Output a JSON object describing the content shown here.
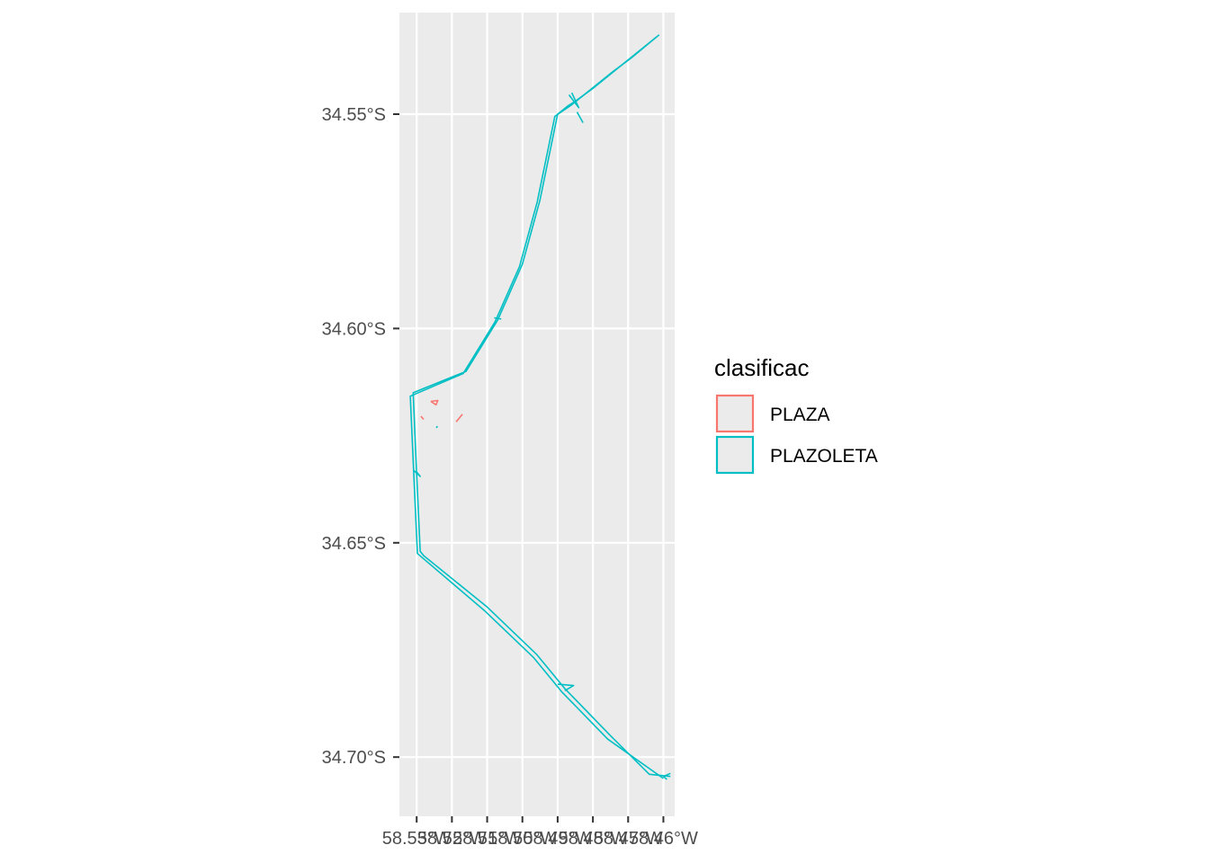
{
  "chart_data": {
    "type": "map",
    "y_ticks": [
      "34.55°S",
      "34.60°S",
      "34.65°S",
      "34.70°S"
    ],
    "y_values": [
      -34.55,
      -34.6,
      -34.65,
      -34.7
    ],
    "x_ticks": [
      "58.53°W",
      "58.52°W",
      "58.51°W",
      "58.50°W",
      "58.49°W",
      "58.48°W",
      "58.47°W",
      "58.46°W"
    ],
    "x_values": [
      -58.53,
      -58.52,
      -58.51,
      -58.5,
      -58.49,
      -58.48,
      -58.47,
      -58.46
    ],
    "xlim": [
      -58.5349,
      -58.4568
    ],
    "ylim": [
      -34.7138,
      -34.5263
    ],
    "grid": true,
    "panel_background": "#ebebeb",
    "legend": {
      "title": "clasificac",
      "position": "right",
      "entries": [
        {
          "label": "PLAZA",
          "color": "#f8766d"
        },
        {
          "label": "PLAZOLETA",
          "color": "#00bfc4"
        }
      ]
    },
    "series": [
      {
        "name": "PLAZOLETA",
        "color": "#00bfc4",
        "paths": [
          [
            [
              -58.4612,
              -34.5315
            ],
            [
              -58.468,
              -34.536
            ],
            [
              -58.474,
              -34.54
            ],
            [
              -58.48,
              -34.544
            ],
            [
              -58.485,
              -34.547
            ],
            [
              -58.487,
              -34.548
            ],
            [
              -58.49,
              -34.55
            ],
            [
              -58.495,
              -34.57
            ],
            [
              -58.5,
              -34.585
            ],
            [
              -58.507,
              -34.598
            ],
            [
              -58.516,
              -34.61
            ],
            [
              -58.531,
              -34.615
            ],
            [
              -58.53,
              -34.634
            ],
            [
              -58.529,
              -34.652
            ],
            [
              -58.528,
              -34.653
            ],
            [
              -58.51,
              -34.665
            ],
            [
              -58.496,
              -34.676
            ],
            [
              -58.488,
              -34.684
            ],
            [
              -58.475,
              -34.695
            ],
            [
              -58.464,
              -34.704
            ],
            [
              -58.458,
              -34.7045
            ]
          ],
          [
            [
              -58.462,
              -34.532
            ],
            [
              -58.469,
              -34.5368
            ],
            [
              -58.475,
              -34.5405
            ],
            [
              -58.486,
              -34.5478
            ],
            [
              -58.4908,
              -34.5505
            ],
            [
              -58.4958,
              -34.5705
            ],
            [
              -58.5008,
              -34.5855
            ],
            [
              -58.5078,
              -34.5985
            ],
            [
              -58.5168,
              -34.6105
            ],
            [
              -58.5318,
              -34.6158
            ],
            [
              -58.5308,
              -34.6345
            ],
            [
              -58.5298,
              -34.6525
            ],
            [
              -58.5108,
              -34.6658
            ],
            [
              -58.4968,
              -34.6768
            ],
            [
              -58.4888,
              -34.6848
            ],
            [
              -58.4758,
              -34.6958
            ],
            [
              -58.46,
              -34.705
            ]
          ],
          [
            [
              -58.4868,
              -34.5455
            ],
            [
              -58.484,
              -34.5485
            ],
            [
              -58.486,
              -34.545
            ]
          ],
          [
            [
              -58.4845,
              -34.5495
            ],
            [
              -58.4828,
              -34.552
            ]
          ],
          [
            [
              -58.531,
              -34.633
            ],
            [
              -58.529,
              -34.6345
            ],
            [
              -58.53,
              -34.6335
            ]
          ],
          [
            [
              -58.49,
              -34.683
            ],
            [
              -58.4855,
              -34.6833
            ],
            [
              -58.488,
              -34.6845
            ]
          ],
          [
            [
              -58.458,
              -34.7038
            ],
            [
              -58.46,
              -34.7045
            ],
            [
              -58.459,
              -34.7052
            ]
          ],
          [
            [
              -58.508,
              -34.5975
            ],
            [
              -58.506,
              -34.5978
            ]
          ],
          [
            [
              -58.5241,
              -34.6228
            ],
            [
              -58.5244,
              -34.6232
            ]
          ]
        ]
      },
      {
        "name": "PLAZA",
        "color": "#f8766d",
        "paths": [
          [
            [
              -58.526,
              -34.617
            ],
            [
              -58.524,
              -34.6168
            ],
            [
              -58.5245,
              -34.6178
            ],
            [
              -58.526,
              -34.617
            ]
          ],
          [
            [
              -58.5288,
              -34.6205
            ],
            [
              -58.528,
              -34.6212
            ]
          ],
          [
            [
              -58.5188,
              -34.6218
            ],
            [
              -58.517,
              -34.62
            ]
          ]
        ]
      }
    ]
  }
}
